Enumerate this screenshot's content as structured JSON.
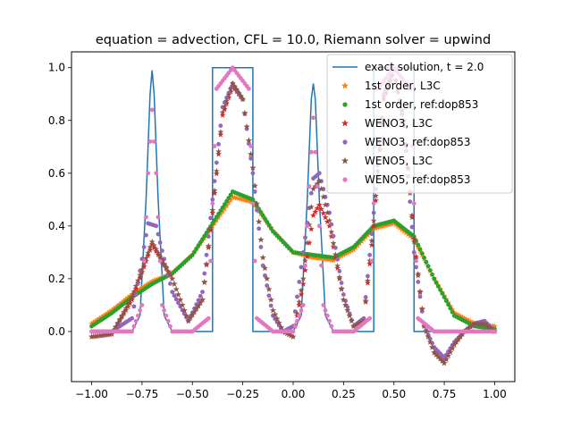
{
  "chart_data": {
    "type": "line",
    "title": "equation = advection, CFL = 10.0, Riemann solver = upwind",
    "xlabel": "",
    "ylabel": "",
    "xlim": [
      -1.1,
      1.1
    ],
    "ylim": [
      -0.19,
      1.06
    ],
    "x_ticks": [
      -1.0,
      -0.75,
      -0.5,
      -0.25,
      0.0,
      0.25,
      0.5,
      0.75,
      1.0
    ],
    "x_tick_labels": [
      "−1.00",
      "−0.75",
      "−0.50",
      "−0.25",
      "0.00",
      "0.25",
      "0.50",
      "0.75",
      "1.00"
    ],
    "y_ticks": [
      0.0,
      0.2,
      0.4,
      0.6,
      0.8,
      1.0
    ],
    "y_tick_labels": [
      "0.0",
      "0.2",
      "0.4",
      "0.6",
      "0.8",
      "1.0"
    ],
    "grid": false,
    "legend_position": "top-right",
    "series": [
      {
        "name": "exact solution, t = 2.0",
        "marker": "line",
        "color": "#1f77b4",
        "x": [
          -1.0,
          -0.9,
          -0.8,
          -0.76,
          -0.73,
          -0.71,
          -0.7,
          -0.69,
          -0.67,
          -0.64,
          -0.6,
          -0.45,
          -0.4,
          -0.4,
          -0.2,
          -0.2,
          0.0,
          0.04,
          0.07,
          0.09,
          0.1,
          0.11,
          0.13,
          0.16,
          0.2,
          0.4,
          0.4,
          0.6,
          0.6,
          1.0
        ],
        "y": [
          0.0,
          0.0,
          0.0,
          0.06,
          0.5,
          0.9,
          0.99,
          0.9,
          0.5,
          0.06,
          0.0,
          0.0,
          0.0,
          1.0,
          1.0,
          0.0,
          0.0,
          0.06,
          0.5,
          0.88,
          0.94,
          0.88,
          0.5,
          0.06,
          0.0,
          0.0,
          1.0,
          1.0,
          0.0,
          0.0
        ]
      },
      {
        "name": "1st order, L3C",
        "marker": "star",
        "color": "#ff7f0e",
        "x": [
          -1.0,
          -0.9,
          -0.8,
          -0.7,
          -0.6,
          -0.5,
          -0.4,
          -0.3,
          -0.2,
          -0.1,
          0.0,
          0.1,
          0.2,
          0.3,
          0.4,
          0.5,
          0.6,
          0.7,
          0.8,
          0.9,
          1.0
        ],
        "y": [
          0.03,
          0.08,
          0.14,
          0.19,
          0.22,
          0.29,
          0.4,
          0.51,
          0.49,
          0.38,
          0.3,
          0.28,
          0.27,
          0.31,
          0.39,
          0.41,
          0.35,
          0.2,
          0.07,
          0.03,
          0.02
        ]
      },
      {
        "name": "1st order, ref:dop853",
        "marker": "dot",
        "color": "#2ca02c",
        "x": [
          -1.0,
          -0.9,
          -0.8,
          -0.7,
          -0.6,
          -0.5,
          -0.4,
          -0.3,
          -0.2,
          -0.1,
          0.0,
          0.1,
          0.2,
          0.3,
          0.4,
          0.5,
          0.6,
          0.7,
          0.8,
          0.9,
          1.0
        ],
        "y": [
          0.02,
          0.07,
          0.13,
          0.18,
          0.22,
          0.29,
          0.41,
          0.53,
          0.5,
          0.38,
          0.3,
          0.29,
          0.28,
          0.32,
          0.4,
          0.42,
          0.36,
          0.2,
          0.06,
          0.02,
          0.01
        ]
      },
      {
        "name": "WENO3, L3C",
        "marker": "star",
        "color": "#d62728",
        "x": [
          -1.0,
          -0.9,
          -0.8,
          -0.7,
          -0.6,
          -0.52,
          -0.45,
          -0.4,
          -0.35,
          -0.3,
          -0.25,
          -0.2,
          -0.15,
          -0.1,
          -0.05,
          0.0,
          0.05,
          0.1,
          0.13,
          0.18,
          0.25,
          0.3,
          0.35,
          0.4,
          0.45,
          0.5,
          0.55,
          0.6,
          0.65,
          0.7,
          0.75,
          0.8,
          0.85,
          0.9,
          0.95,
          1.0
        ],
        "y": [
          -0.02,
          -0.01,
          0.12,
          0.33,
          0.2,
          0.04,
          0.12,
          0.45,
          0.82,
          0.93,
          0.88,
          0.62,
          0.28,
          0.08,
          0.0,
          -0.02,
          0.18,
          0.44,
          0.48,
          0.4,
          0.12,
          0.02,
          0.04,
          0.4,
          0.88,
          0.99,
          0.8,
          0.35,
          0.02,
          -0.08,
          -0.12,
          -0.05,
          0.0,
          0.03,
          0.03,
          0.0
        ]
      },
      {
        "name": "WENO3, ref:dop853",
        "marker": "dot",
        "color": "#9467bd",
        "x": [
          -1.0,
          -0.9,
          -0.8,
          -0.72,
          -0.68,
          -0.6,
          -0.52,
          -0.45,
          -0.4,
          -0.35,
          -0.3,
          -0.25,
          -0.2,
          -0.15,
          -0.1,
          -0.05,
          0.0,
          0.05,
          0.1,
          0.13,
          0.18,
          0.25,
          0.3,
          0.35,
          0.4,
          0.45,
          0.5,
          0.55,
          0.6,
          0.65,
          0.7,
          0.75,
          0.8,
          0.85,
          0.9,
          0.95,
          1.0
        ],
        "y": [
          0.0,
          0.0,
          0.05,
          0.41,
          0.4,
          0.15,
          0.04,
          0.15,
          0.5,
          0.85,
          0.94,
          0.88,
          0.6,
          0.25,
          0.06,
          0.0,
          0.02,
          0.3,
          0.58,
          0.6,
          0.45,
          0.14,
          0.02,
          0.05,
          0.45,
          0.9,
          0.99,
          0.78,
          0.3,
          0.02,
          -0.06,
          -0.1,
          -0.04,
          0.0,
          0.03,
          0.04,
          0.0
        ]
      },
      {
        "name": "WENO5, L3C",
        "marker": "star",
        "color": "#8c564b",
        "x": [
          -1.0,
          -0.9,
          -0.8,
          -0.7,
          -0.6,
          -0.52,
          -0.45,
          -0.4,
          -0.35,
          -0.3,
          -0.25,
          -0.2,
          -0.15,
          -0.1,
          -0.05,
          0.0,
          0.05,
          0.1,
          0.13,
          0.18,
          0.25,
          0.3,
          0.35,
          0.4,
          0.45,
          0.5,
          0.55,
          0.6,
          0.65,
          0.7,
          0.75,
          0.8,
          0.85,
          0.9,
          0.95,
          1.0
        ],
        "y": [
          -0.02,
          -0.01,
          0.13,
          0.34,
          0.2,
          0.04,
          0.12,
          0.46,
          0.83,
          0.94,
          0.88,
          0.62,
          0.28,
          0.08,
          0.0,
          -0.02,
          0.2,
          0.54,
          0.57,
          0.42,
          0.12,
          0.02,
          0.04,
          0.42,
          0.89,
          0.99,
          0.8,
          0.34,
          0.02,
          -0.08,
          -0.12,
          -0.05,
          0.0,
          0.03,
          0.03,
          0.0
        ]
      },
      {
        "name": "WENO5, ref:dop853",
        "marker": "dot",
        "color": "#e377c2",
        "x": [
          -1.0,
          -0.9,
          -0.8,
          -0.75,
          -0.72,
          -0.7,
          -0.68,
          -0.65,
          -0.6,
          -0.5,
          -0.42,
          -0.38,
          -0.3,
          -0.22,
          -0.18,
          -0.1,
          0.0,
          0.05,
          0.08,
          0.1,
          0.12,
          0.15,
          0.2,
          0.3,
          0.38,
          0.42,
          0.5,
          0.58,
          0.62,
          0.7,
          0.8,
          0.9,
          1.0
        ],
        "y": [
          0.0,
          0.0,
          0.0,
          0.1,
          0.6,
          0.84,
          0.6,
          0.1,
          0.0,
          0.0,
          0.05,
          0.92,
          1.0,
          0.92,
          0.05,
          0.0,
          0.0,
          0.1,
          0.55,
          0.81,
          0.55,
          0.1,
          0.0,
          0.0,
          0.05,
          0.92,
          1.0,
          0.92,
          0.05,
          0.0,
          0.0,
          0.0,
          0.0
        ]
      }
    ]
  }
}
